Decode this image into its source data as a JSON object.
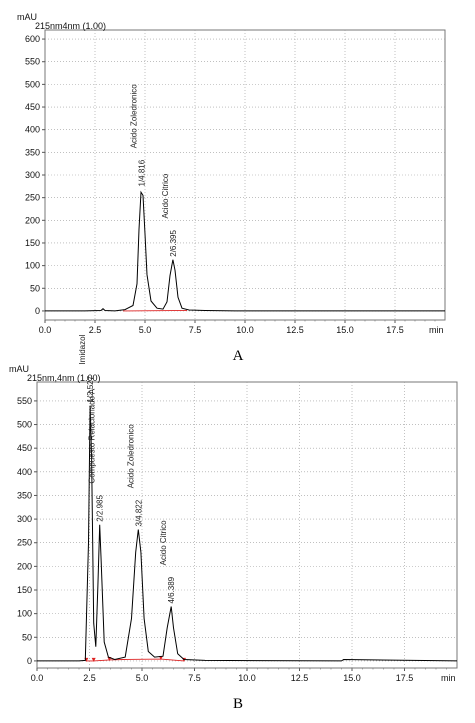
{
  "chart_data": [
    {
      "type": "line",
      "panel_label": "A",
      "channel_label": "215nm4nm (1.00)",
      "ylabel": "mAU",
      "xlabel": "min",
      "xlim": [
        0,
        20
      ],
      "ylim": [
        -20,
        620
      ],
      "x_ticks": [
        "0.0",
        "2.5",
        "5.0",
        "7.5",
        "10.0",
        "12.5",
        "15.0",
        "17.5"
      ],
      "y_ticks": [
        "0",
        "50",
        "100",
        "150",
        "200",
        "250",
        "300",
        "350",
        "400",
        "450",
        "500",
        "550",
        "600"
      ],
      "grid": true,
      "series": [
        {
          "x": [
            0,
            2.0,
            2.8,
            2.9,
            3.0,
            3.5,
            4.0,
            4.4,
            4.6,
            4.7,
            4.8,
            4.9,
            5.0,
            5.1,
            5.3,
            5.6,
            5.9,
            6.1,
            6.25,
            6.395,
            6.5,
            6.65,
            6.85,
            7.2,
            8.0,
            9.5,
            10.0,
            20.0
          ],
          "y": [
            0,
            0,
            1,
            5,
            1,
            0,
            3,
            12,
            60,
            180,
            262,
            255,
            170,
            80,
            22,
            6,
            4,
            20,
            78,
            113,
            90,
            30,
            6,
            2,
            1,
            0,
            0,
            0
          ]
        }
      ],
      "peaks": [
        {
          "label": "1/4.816",
          "name": "Acido Zoledronico",
          "x": 4.816,
          "y": 268
        },
        {
          "label": "2/6.395",
          "name": "Acido Citrico",
          "x": 6.395,
          "y": 113
        }
      ]
    },
    {
      "type": "line",
      "panel_label": "B",
      "channel_label": "215nm,4nm (1.00)",
      "ylabel": "mAU",
      "xlabel": "min",
      "xlim": [
        0,
        20
      ],
      "ylim": [
        -15,
        590
      ],
      "x_ticks": [
        "0.0",
        "2.5",
        "5.0",
        "7.5",
        "10.0",
        "12.5",
        "15.0",
        "17.5"
      ],
      "y_ticks": [
        "0",
        "50",
        "100",
        "150",
        "200",
        "250",
        "300",
        "350",
        "400",
        "450",
        "500",
        "550"
      ],
      "grid": true,
      "series": [
        {
          "x": [
            0,
            2.0,
            2.3,
            2.45,
            2.527,
            2.6,
            2.7,
            2.8,
            2.9,
            2.985,
            3.05,
            3.2,
            3.4,
            3.7,
            4.2,
            4.5,
            4.7,
            4.822,
            4.95,
            5.1,
            5.3,
            5.6,
            6.0,
            6.2,
            6.389,
            6.5,
            6.7,
            7.0,
            8.0,
            14.5,
            14.6,
            20.0
          ],
          "y": [
            0,
            0,
            1,
            250,
            540,
            430,
            80,
            30,
            160,
            288,
            220,
            40,
            8,
            3,
            8,
            90,
            230,
            278,
            230,
            90,
            20,
            8,
            10,
            70,
            115,
            70,
            15,
            3,
            1,
            0,
            3,
            0
          ]
        }
      ],
      "peaks": [
        {
          "label": "1/2.527",
          "name": "Imidazol",
          "x": 2.527,
          "y": 540
        },
        {
          "label": "2/2.985",
          "name": "Compuesto Relacionado A",
          "x": 2.985,
          "y": 288
        },
        {
          "label": "3/4.822",
          "name": "Acido Zoledronico",
          "x": 4.822,
          "y": 278
        },
        {
          "label": "4/6.389",
          "name": "Acido Citrico",
          "x": 6.389,
          "y": 115
        }
      ]
    }
  ]
}
